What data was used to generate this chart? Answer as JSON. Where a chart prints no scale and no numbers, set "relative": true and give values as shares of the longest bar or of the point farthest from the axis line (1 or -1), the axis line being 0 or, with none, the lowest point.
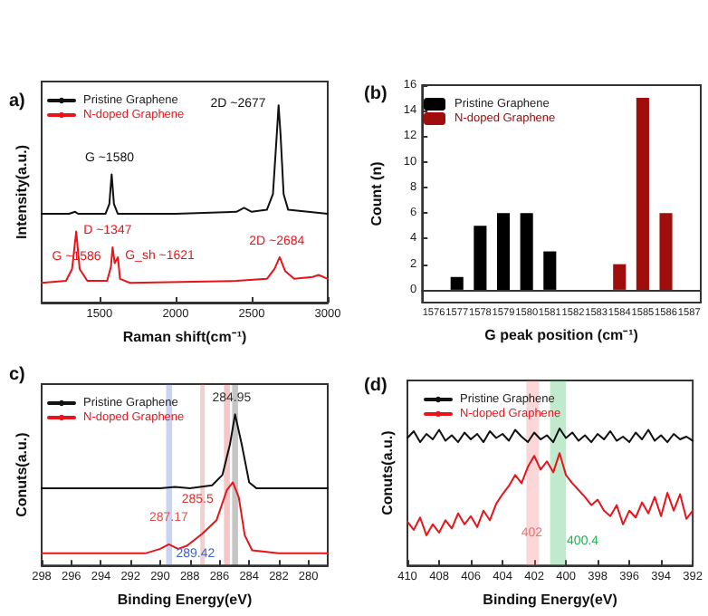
{
  "chart_data": [
    {
      "type": "line",
      "title": "a)",
      "xlabel": "Raman shift(cm⁻¹)",
      "ylabel": "Intensity(a.u.)",
      "relative": true,
      "legend": "top left",
      "marker": "none",
      "xlim": [
        1120,
        3000
      ],
      "xticks": [
        1500,
        2000,
        2500,
        3000
      ],
      "series": [
        {
          "name": "Pristine Graphene",
          "color": "#111111",
          "x": [
            1120,
            1300,
            1340,
            1360,
            1540,
            1565,
            1580,
            1595,
            1620,
            2000,
            2400,
            2450,
            2500,
            2600,
            2640,
            2665,
            2677,
            2690,
            2710,
            2740,
            3000
          ],
          "values": [
            0.45,
            0.45,
            0.46,
            0.45,
            0.45,
            0.5,
            0.65,
            0.5,
            0.45,
            0.45,
            0.46,
            0.48,
            0.46,
            0.47,
            0.55,
            0.85,
            1,
            0.85,
            0.55,
            0.47,
            0.45
          ]
        },
        {
          "name": "N-doped Graphene",
          "color": "#e8141a",
          "x": [
            1120,
            1280,
            1320,
            1347,
            1370,
            1420,
            1550,
            1575,
            1586,
            1600,
            1621,
            1635,
            1700,
            2400,
            2600,
            2650,
            2684,
            2720,
            2780,
            2900,
            2940,
            3000
          ],
          "values": [
            0.1,
            0.11,
            0.17,
            0.36,
            0.17,
            0.11,
            0.11,
            0.18,
            0.28,
            0.2,
            0.23,
            0.12,
            0.1,
            0.11,
            0.12,
            0.17,
            0.23,
            0.16,
            0.12,
            0.13,
            0.14,
            0.12
          ]
        }
      ],
      "annotations": [
        {
          "text": "G ~1580",
          "x": 1580,
          "y": 0.65
        },
        {
          "text": "2D ~2677",
          "x": 2677,
          "y": 1
        },
        {
          "text": "D ~1347",
          "x": 1347,
          "y": 0.36
        },
        {
          "text": "G_sh ~1621",
          "x": 1621,
          "y": 0.23
        },
        {
          "text": "G ~1586",
          "x": 1586,
          "y": 0.28
        },
        {
          "text": "2D ~2684",
          "x": 2684,
          "y": 0.23
        }
      ]
    },
    {
      "type": "bar",
      "title": "(b)",
      "xlabel": "G peak position (cm⁻¹)",
      "ylabel": "Count (n)",
      "legend": "top left",
      "categories": [
        "1576",
        "1577",
        "1578",
        "1579",
        "1580",
        "1581",
        "1582",
        "1583",
        "1584",
        "1585",
        "1586",
        "1587"
      ],
      "ylim": [
        -1,
        16
      ],
      "yticks": [
        0,
        2,
        4,
        6,
        8,
        10,
        12,
        14,
        16
      ],
      "series": [
        {
          "name": "Pristine Graphene",
          "color": "#000000",
          "values": [
            null,
            1,
            5,
            6,
            6,
            3,
            null,
            null,
            null,
            null,
            null,
            null
          ]
        },
        {
          "name": "N-doped Graphene",
          "color": "#a00d0d",
          "values": [
            null,
            null,
            null,
            null,
            null,
            null,
            null,
            null,
            2,
            15,
            6,
            null
          ]
        }
      ]
    },
    {
      "type": "line",
      "title": "c)",
      "xlabel": "Binding Energy(eV)",
      "ylabel": "Conuts(a.u.)",
      "relative": true,
      "legend": "top left",
      "marker": "none",
      "xlim": [
        298,
        278.7
      ],
      "xticks": [
        298,
        296,
        294,
        292,
        290,
        288,
        286,
        284,
        282,
        280
      ],
      "series": [
        {
          "name": "Pristine Graphene",
          "color": "#111111",
          "x": [
            298,
            290,
            289,
            288,
            286.5,
            285.8,
            285.3,
            284.95,
            284.5,
            284,
            283.5,
            278.7
          ],
          "values": [
            0.51,
            0.51,
            0.52,
            0.51,
            0.53,
            0.6,
            0.8,
            1,
            0.8,
            0.55,
            0.51,
            0.51
          ]
        },
        {
          "name": "N-doped Graphene",
          "color": "#e8141a",
          "x": [
            298,
            291,
            290,
            289.42,
            288.8,
            288.2,
            287.17,
            286.2,
            285.5,
            285.1,
            284.7,
            284.3,
            283.8,
            282,
            278.7
          ],
          "values": [
            0.08,
            0.08,
            0.11,
            0.14,
            0.11,
            0.13,
            0.21,
            0.3,
            0.5,
            0.55,
            0.45,
            0.2,
            0.1,
            0.08,
            0.08
          ]
        }
      ],
      "bands": [
        {
          "axis": "x",
          "from": 289.6,
          "to": 289.2,
          "color": "#4060d0"
        },
        {
          "axis": "x",
          "from": 287.3,
          "to": 287.0,
          "color": "#e05050"
        },
        {
          "axis": "x",
          "from": 285.7,
          "to": 285.3,
          "color": "#e03030"
        },
        {
          "axis": "x",
          "from": 285.15,
          "to": 284.75,
          "color": "#303030"
        }
      ],
      "annotations": [
        {
          "text": "284.95",
          "x": 284.95,
          "y": 1
        },
        {
          "text": "285.5",
          "x": 285.5,
          "y": 0.5
        },
        {
          "text": "287.17",
          "x": 287.17,
          "y": 0.21
        },
        {
          "text": "289.42",
          "x": 289.42,
          "y": 0.14
        }
      ]
    },
    {
      "type": "line",
      "title": "(d)",
      "xlabel": "Binding Energy(eV)",
      "ylabel": "Conuts(a.u.)",
      "relative": true,
      "legend": "top left",
      "marker": "none",
      "xlim": [
        410,
        392
      ],
      "xticks": [
        410,
        408,
        406,
        404,
        402,
        400,
        398,
        396,
        394,
        392
      ],
      "x": [
        410,
        409.6,
        409.2,
        408.8,
        408.4,
        408,
        407.6,
        407.2,
        406.8,
        406.4,
        406,
        405.6,
        405.2,
        404.8,
        404.4,
        404,
        403.6,
        403.2,
        402.8,
        402.4,
        402,
        401.6,
        401.2,
        400.8,
        400.4,
        400,
        399.6,
        399.2,
        398.8,
        398.4,
        398,
        397.6,
        397.2,
        396.8,
        396.4,
        396,
        395.6,
        395.2,
        394.8,
        394.4,
        394,
        393.6,
        393.2,
        392.8,
        392.4,
        392
      ],
      "series": [
        {
          "name": "Pristine Graphene",
          "color": "#111111",
          "values": [
            0.93,
            0.98,
            0.9,
            0.96,
            0.92,
            0.99,
            0.91,
            0.95,
            0.9,
            0.97,
            0.92,
            0.96,
            0.9,
            0.98,
            0.93,
            0.96,
            0.91,
            0.99,
            0.94,
            0.9,
            0.97,
            0.92,
            0.95,
            0.9,
            1,
            0.93,
            0.97,
            0.91,
            0.95,
            0.9,
            0.96,
            0.92,
            0.98,
            0.91,
            0.94,
            0.9,
            0.97,
            0.92,
            0.99,
            0.91,
            0.95,
            0.9,
            0.96,
            0.92,
            0.94,
            0.91
          ]
        },
        {
          "name": "N-doped Graphene",
          "color": "#e8141a",
          "values": [
            0.32,
            0.26,
            0.35,
            0.22,
            0.3,
            0.24,
            0.33,
            0.27,
            0.38,
            0.3,
            0.36,
            0.28,
            0.4,
            0.33,
            0.45,
            0.52,
            0.58,
            0.66,
            0.6,
            0.72,
            0.8,
            0.7,
            0.76,
            0.68,
            0.82,
            0.66,
            0.6,
            0.55,
            0.5,
            0.44,
            0.48,
            0.4,
            0.36,
            0.44,
            0.3,
            0.4,
            0.35,
            0.46,
            0.38,
            0.5,
            0.36,
            0.53,
            0.4,
            0.52,
            0.34,
            0.4
          ]
        }
      ],
      "bands": [
        {
          "axis": "x",
          "from": 402.5,
          "to": 401.7,
          "color": "#f07070"
        },
        {
          "axis": "x",
          "from": 401,
          "to": 400,
          "color": "#20b050"
        }
      ],
      "annotations": [
        {
          "text": "402",
          "x": 402.1,
          "y": 0.12
        },
        {
          "text": "400.4",
          "x": 400.4,
          "y": 0.06
        }
      ]
    }
  ]
}
